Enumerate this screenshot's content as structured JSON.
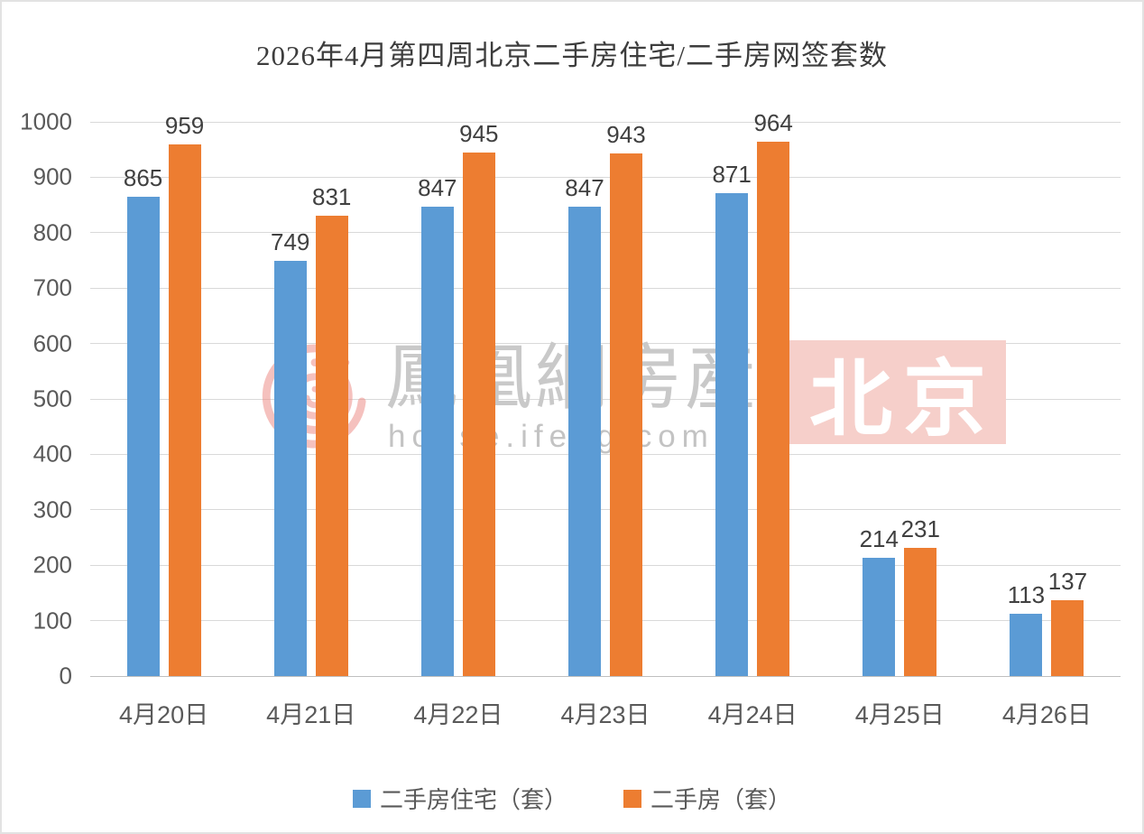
{
  "chart_data": {
    "type": "bar",
    "title": "2026年4月第四周北京二手房住宅/二手房网签套数",
    "categories": [
      "4月20日",
      "4月21日",
      "4月22日",
      "4月23日",
      "4月24日",
      "4月25日",
      "4月26日"
    ],
    "series": [
      {
        "name": "二手房住宅（套）",
        "color": "#5B9BD5",
        "values": [
          865,
          749,
          847,
          847,
          871,
          214,
          113
        ]
      },
      {
        "name": "二手房（套）",
        "color": "#ED7D31",
        "values": [
          959,
          831,
          945,
          943,
          964,
          231,
          137
        ]
      }
    ],
    "ylim": [
      0,
      1000
    ],
    "yticks": [
      0,
      100,
      200,
      300,
      400,
      500,
      600,
      700,
      800,
      900,
      1000
    ],
    "grid": true,
    "legend_position": "bottom",
    "show_value_labels": true
  },
  "watermark": {
    "logo_name": "phoenix-logo",
    "brand_text": "鳳凰網房産",
    "url_text": "house.ifeng.com",
    "badge_text": "北京",
    "badge_bg": "#F6CFCA",
    "badge_text_color": "#FFFFFF",
    "brand_color": "#C9C9C9",
    "logo_color": "#E8584C"
  },
  "colors": {
    "grid": "#D9D9D9",
    "axis_line": "#BFBFBF",
    "tick_label": "#595959",
    "value_label": "#404040",
    "title": "#3D3D3D",
    "background": "#FFFFFF",
    "frame_border": "#E2E2E2"
  }
}
